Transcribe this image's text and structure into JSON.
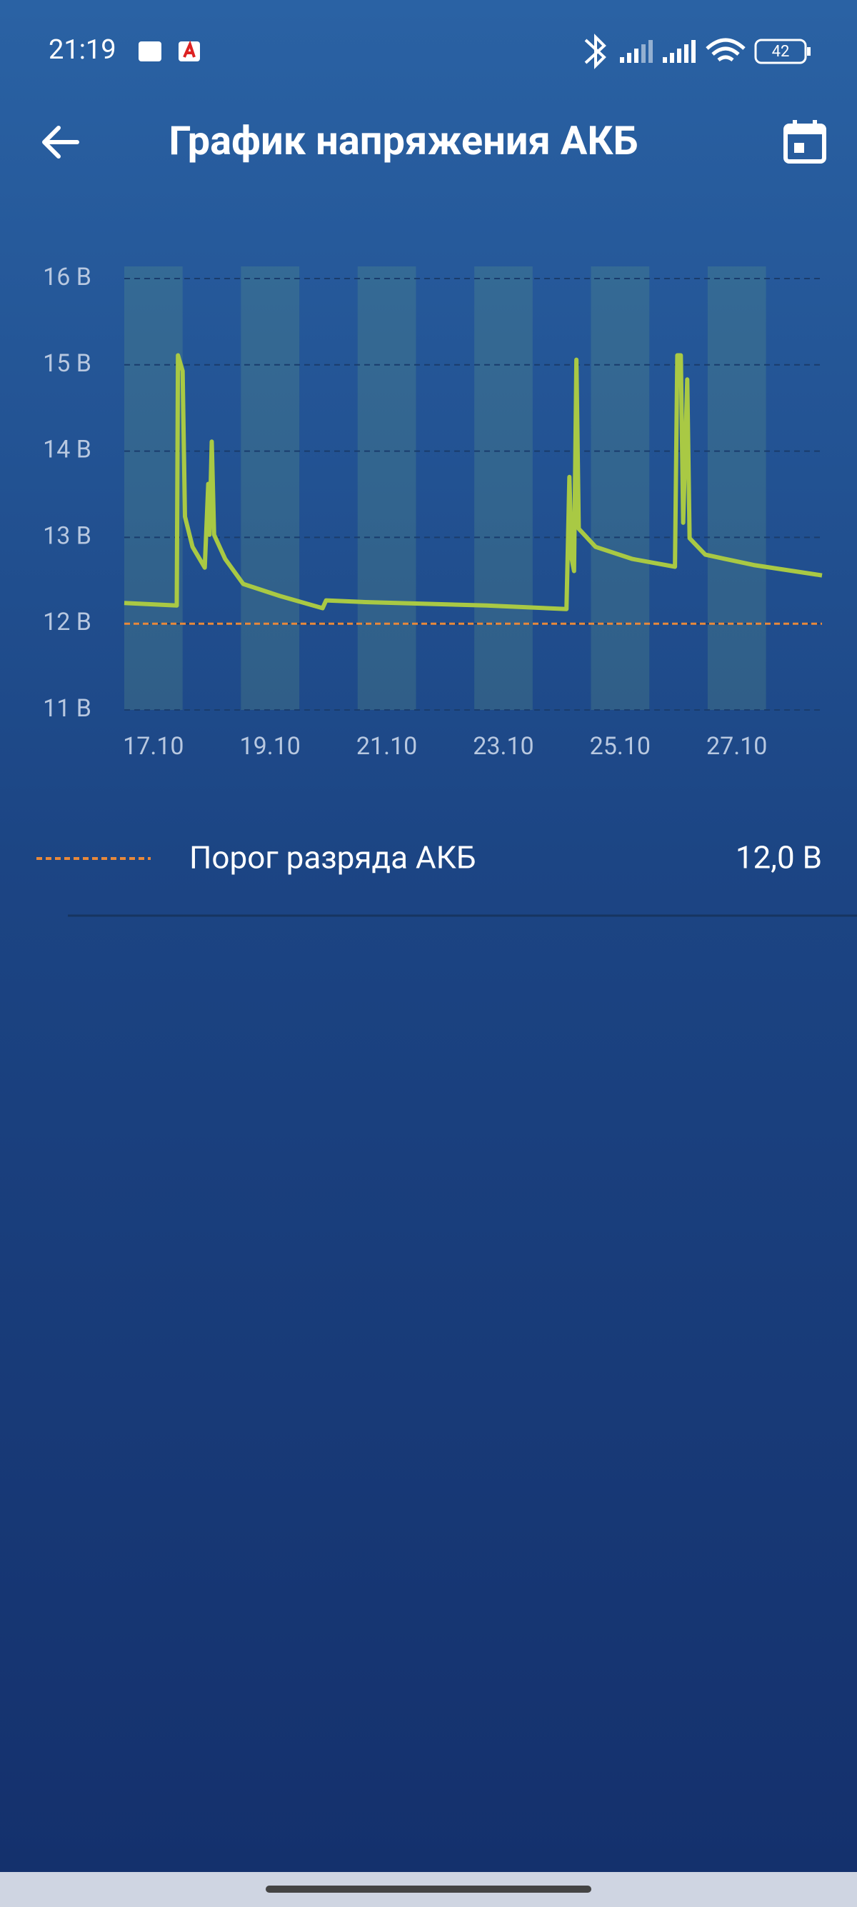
{
  "status_bar": {
    "time": "21:19",
    "battery": "42"
  },
  "chart_data": {
    "type": "line",
    "title": "График напряжения АКБ",
    "x": [
      16.5,
      17.4,
      17.42,
      17.5,
      17.54,
      17.67,
      17.88,
      17.94,
      17.96,
      18.0,
      18.04,
      18.23,
      18.54,
      19.17,
      19.9,
      19.96,
      20.63,
      22.71,
      24.08,
      24.13,
      24.17,
      24.21,
      24.25,
      24.29,
      24.58,
      25.21,
      25.94,
      25.98,
      26.04,
      26.08,
      26.15,
      26.19,
      26.46,
      27.29,
      28.46
    ],
    "series": [
      {
        "color": "#a9c944",
        "values": [
          12.24,
          12.21,
          15.11,
          14.93,
          13.24,
          12.89,
          12.65,
          13.62,
          13.03,
          14.11,
          13.03,
          12.75,
          12.46,
          12.32,
          12.18,
          12.27,
          12.25,
          12.21,
          12.17,
          13.7,
          12.75,
          12.61,
          15.06,
          13.1,
          12.89,
          12.75,
          12.66,
          15.11,
          15.11,
          13.17,
          14.83,
          12.99,
          12.8,
          12.68,
          12.56
        ]
      }
    ],
    "xlim": [
      16.5,
      28.46
    ],
    "xticks": [
      {
        "value": 17,
        "label": "17.10"
      },
      {
        "value": 19,
        "label": "19.10"
      },
      {
        "value": 21,
        "label": "21.10"
      },
      {
        "value": 23,
        "label": "23.10"
      },
      {
        "value": 25,
        "label": "25.10"
      },
      {
        "value": 27,
        "label": "27.10"
      }
    ],
    "ylim": [
      11,
      16
    ],
    "yticks": [
      {
        "value": 16,
        "label": "16 В"
      },
      {
        "value": 15,
        "label": "15 В"
      },
      {
        "value": 14,
        "label": "14 В"
      },
      {
        "value": 13,
        "label": "13 В"
      },
      {
        "value": 12,
        "label": "12 В"
      },
      {
        "value": 11,
        "label": "11 В"
      }
    ],
    "grid": true,
    "threshold": {
      "name": "Порог разряда АКБ",
      "value": 12,
      "label": "12,0 В",
      "color": "#e8883a"
    }
  }
}
